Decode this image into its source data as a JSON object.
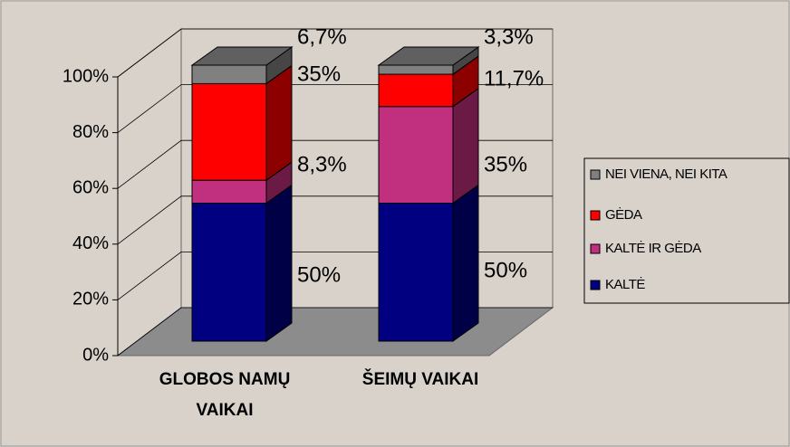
{
  "chart_data": {
    "type": "bar3d_stacked_percent",
    "categories": [
      "GLOBOS NAMŲ VAIKAI",
      "ŠEIMŲ VAIKAI"
    ],
    "series": [
      {
        "name": "KALTĖ",
        "color": "#000080",
        "values": [
          50,
          50
        ],
        "value_labels": [
          "50%",
          "50%"
        ]
      },
      {
        "name": "KALTĖ IR GĖDA",
        "color": "#c0307e",
        "values": [
          8.3,
          35
        ],
        "value_labels": [
          "8,3%",
          "35%"
        ]
      },
      {
        "name": "GĖDA",
        "color": "#ff0000",
        "values": [
          35,
          11.7
        ],
        "value_labels": [
          "35%",
          "11,7%"
        ]
      },
      {
        "name": "NEI VIENA, NEI KITA",
        "color": "#808080",
        "values": [
          6.7,
          3.3
        ],
        "value_labels": [
          "6,7%",
          "3,3%"
        ]
      }
    ],
    "ylim": [
      0,
      100
    ],
    "yticks": [
      {
        "value": 0,
        "label": "0%"
      },
      {
        "value": 20,
        "label": "20%"
      },
      {
        "value": 40,
        "label": "40%"
      },
      {
        "value": 60,
        "label": "60%"
      },
      {
        "value": 80,
        "label": "80%"
      },
      {
        "value": 100,
        "label": "100%"
      }
    ],
    "grid": true,
    "legend": "right"
  }
}
